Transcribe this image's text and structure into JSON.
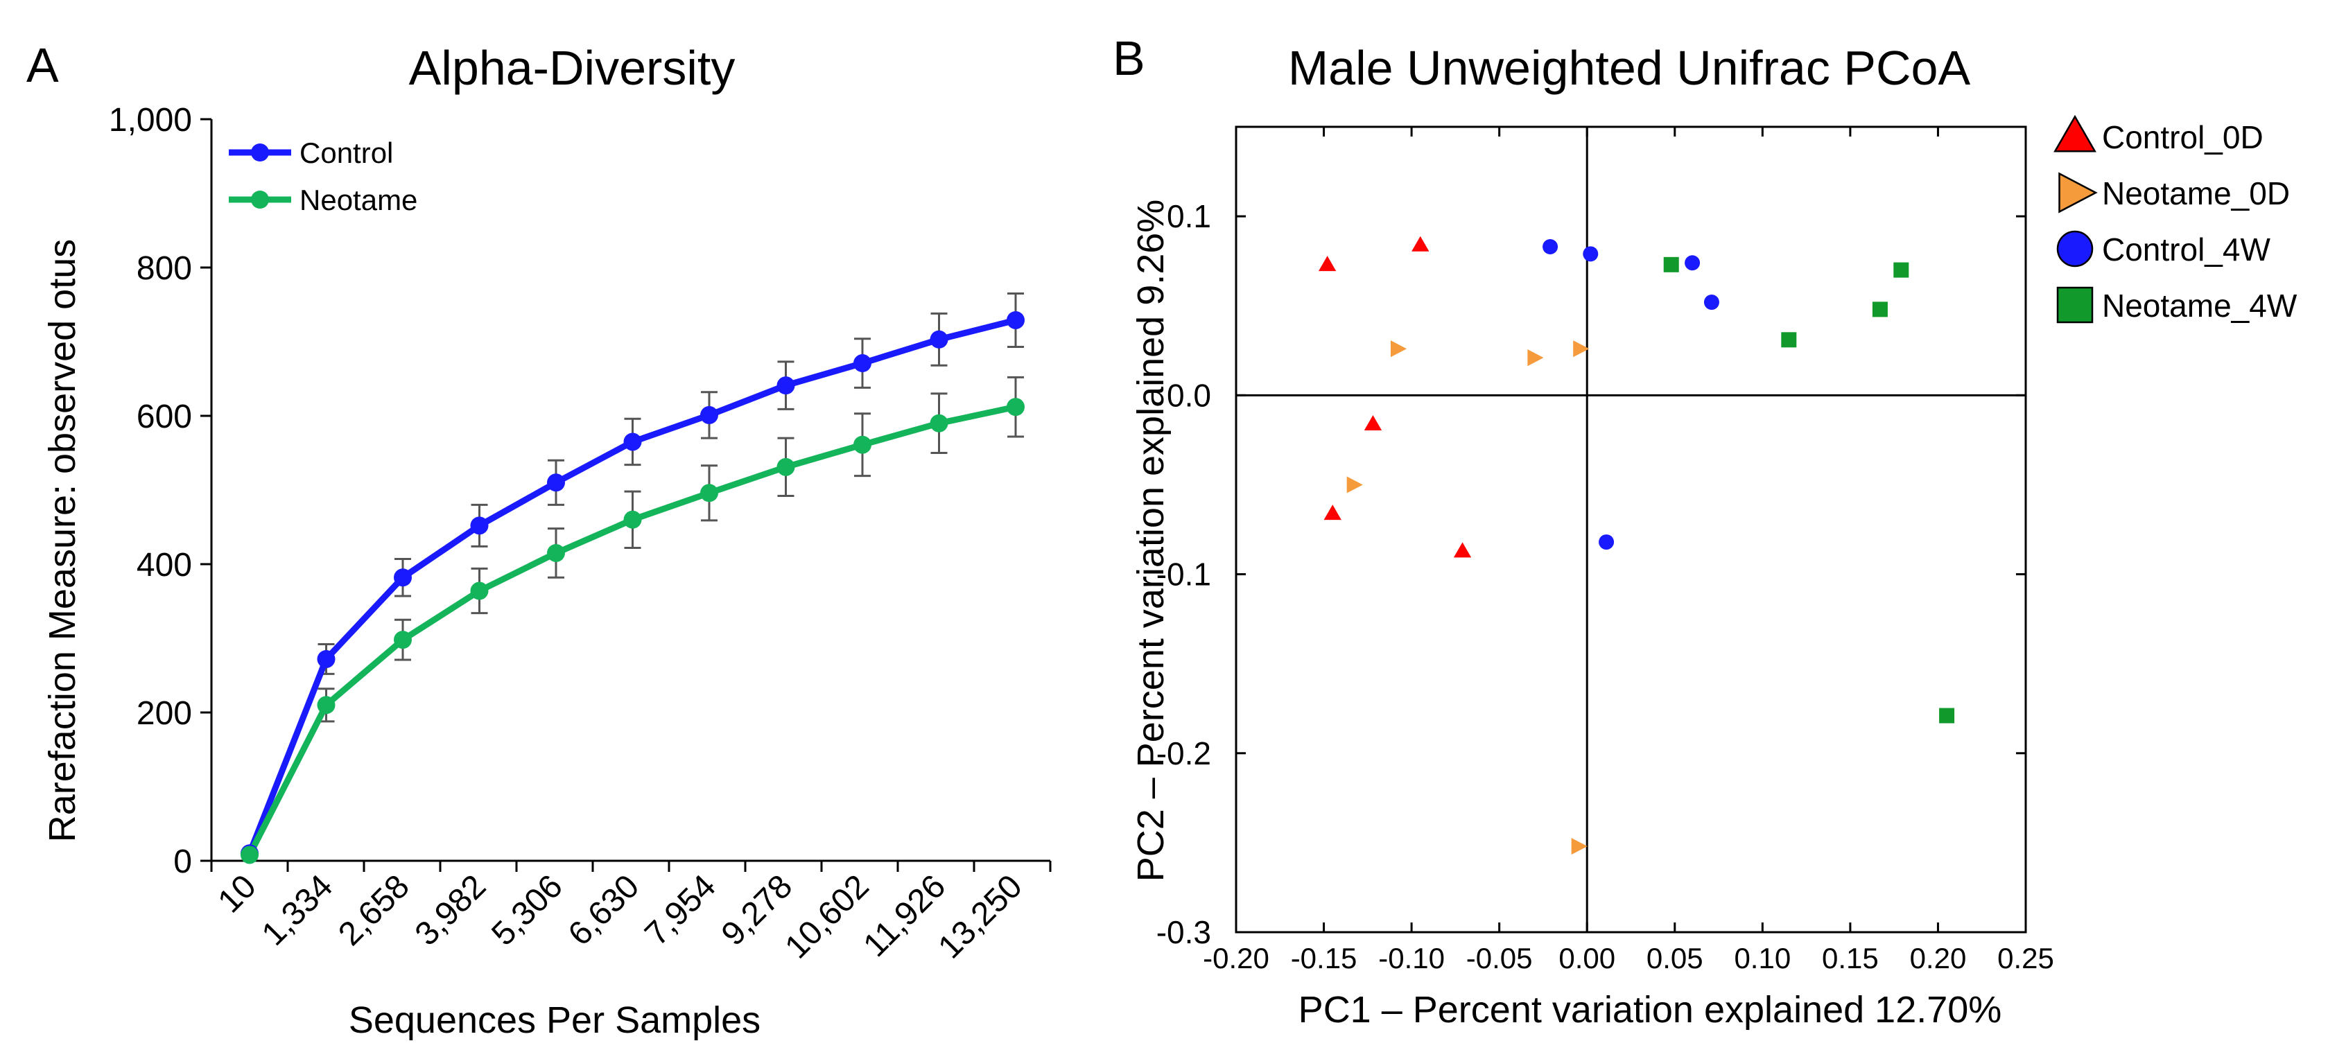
{
  "chart_data": [
    {
      "panel": "A",
      "type": "line",
      "title": "Alpha-Diversity",
      "xlabel": "Sequences Per Samples",
      "ylabel": "Rarefaction Measure: observed otus",
      "ylim": [
        0,
        1000
      ],
      "yticks": [
        0,
        200,
        400,
        600,
        800,
        1000
      ],
      "ytick_labels": [
        "0",
        "200",
        "400",
        "600",
        "800",
        "1,000"
      ],
      "categories": [
        "10",
        "1,334",
        "2,658",
        "3,982",
        "5,306",
        "6,630",
        "7,954",
        "9,278",
        "10,602",
        "11,926",
        "13,250"
      ],
      "legend_position": "top-left",
      "series": [
        {
          "name": "Control",
          "color": "#1a1aff",
          "values": [
            10,
            272,
            382,
            452,
            510,
            565,
            601,
            641,
            671,
            703,
            729
          ],
          "errors": [
            0,
            20,
            25,
            28,
            30,
            31,
            31,
            32,
            33,
            35,
            36
          ]
        },
        {
          "name": "Neotame",
          "color": "#14b45a",
          "values": [
            8,
            210,
            298,
            364,
            415,
            460,
            496,
            531,
            561,
            590,
            612
          ],
          "errors": [
            0,
            22,
            27,
            30,
            33,
            38,
            37,
            39,
            42,
            40,
            40
          ]
        }
      ]
    },
    {
      "panel": "B",
      "type": "scatter",
      "title": "Male Unweighted Unifrac PCoA",
      "xlabel": "PC1 – Percent variation explained 12.70%",
      "ylabel": "PC2 – Percent variation explained 9.26%",
      "xlim": [
        -0.2,
        0.25
      ],
      "ylim": [
        -0.3,
        0.15
      ],
      "xticks": [
        -0.2,
        -0.15,
        -0.1,
        -0.05,
        0,
        0.05,
        0.1,
        0.15,
        0.2,
        0.25
      ],
      "xtick_labels": [
        "-0.20",
        "-0.15",
        "-0.10",
        "-0.05",
        "0.00",
        "0.05",
        "0.10",
        "0.15",
        "0.20",
        "0.25"
      ],
      "yticks": [
        0.1,
        0,
        -0.1,
        -0.2,
        -0.3
      ],
      "ytick_labels": [
        "0.1",
        "0.0",
        "-0.1",
        "-0.2",
        "-0.3"
      ],
      "legend_position": "right",
      "series": [
        {
          "name": "Control_0D",
          "color": "#ff0000",
          "marker": "triangle-up",
          "points": [
            [
              -0.148,
              0.073
            ],
            [
              -0.095,
              0.084
            ],
            [
              -0.122,
              -0.016
            ],
            [
              -0.145,
              -0.066
            ],
            [
              -0.071,
              -0.087
            ]
          ]
        },
        {
          "name": "Neotame_0D",
          "color": "#f59b3c",
          "marker": "triangle-right",
          "points": [
            [
              -0.108,
              0.026
            ],
            [
              -0.03,
              0.021
            ],
            [
              -0.004,
              0.026
            ],
            [
              -0.133,
              -0.05
            ],
            [
              -0.005,
              -0.252
            ]
          ]
        },
        {
          "name": "Control_4W",
          "color": "#1a1aff",
          "marker": "circle",
          "points": [
            [
              -0.021,
              0.083
            ],
            [
              0.002,
              0.079
            ],
            [
              0.06,
              0.074
            ],
            [
              0.071,
              0.052
            ],
            [
              0.011,
              -0.082
            ]
          ]
        },
        {
          "name": "Neotame_4W",
          "color": "#119a2b",
          "marker": "square",
          "points": [
            [
              0.048,
              0.073
            ],
            [
              0.115,
              0.031
            ],
            [
              0.167,
              0.048
            ],
            [
              0.179,
              0.07
            ],
            [
              0.205,
              -0.179
            ]
          ]
        }
      ]
    }
  ],
  "panel_labels": {
    "a": "A",
    "b": "B"
  }
}
